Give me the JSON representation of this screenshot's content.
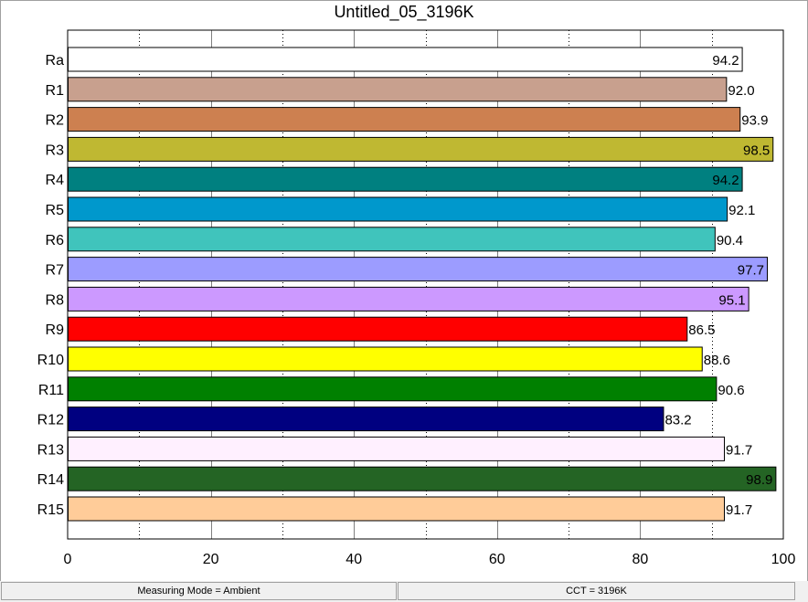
{
  "window": {
    "title": "Untitled_05_3196K"
  },
  "status_bar": {
    "mode": "Measuring Mode = Ambient",
    "cct": "CCT = 3196K"
  },
  "chart_data": {
    "type": "bar",
    "orientation": "horizontal",
    "title": "Untitled_05_3196K",
    "xlabel": "",
    "ylabel": "",
    "xlim": [
      0,
      100
    ],
    "xticks": [
      0,
      20,
      40,
      60,
      80,
      100
    ],
    "grid": "vertical dotted",
    "legend": "none",
    "categories": [
      "Ra",
      "R1",
      "R2",
      "R3",
      "R4",
      "R5",
      "R6",
      "R7",
      "R8",
      "R9",
      "R10",
      "R11",
      "R12",
      "R13",
      "R14",
      "R15"
    ],
    "values": [
      94.2,
      92.0,
      93.9,
      98.5,
      94.2,
      92.1,
      90.4,
      97.7,
      95.1,
      86.5,
      88.6,
      90.6,
      83.2,
      91.7,
      98.9,
      91.7
    ],
    "value_labels": [
      "94.2",
      "92.0",
      "93.9",
      "98.5",
      "94.2",
      "92.1",
      "90.4",
      "97.7",
      "95.1",
      "86.5",
      "88.6",
      "90.6",
      "83.2",
      "91.7",
      "98.9",
      "91.7"
    ],
    "colors": [
      "#ffffff",
      "#c8a08e",
      "#cd8050",
      "#bfb832",
      "#008080",
      "#0098cc",
      "#40c4bc",
      "#9c9cff",
      "#cc99ff",
      "#ff0000",
      "#ffff00",
      "#008000",
      "#000080",
      "#fff0ff",
      "#246424",
      "#ffcc99"
    ]
  }
}
